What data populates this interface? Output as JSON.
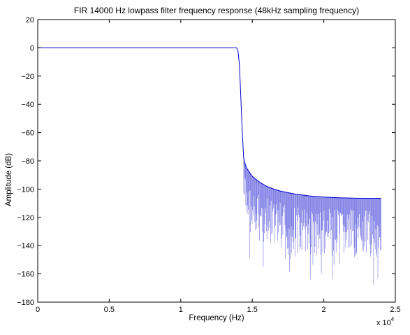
{
  "chart_data": {
    "type": "line",
    "title": "FIR 14000 Hz lowpass filter frequency response (48kHz sampling frequency)",
    "xlabel": "Frequency (Hz)",
    "ylabel": "Amplitude (dB)",
    "x_multiplier_label": "x 10",
    "x_multiplier_exponent": "4",
    "xlim": [
      0,
      25000
    ],
    "ylim": [
      -180,
      20
    ],
    "xticks": [
      0,
      5000,
      10000,
      15000,
      20000,
      25000
    ],
    "xtick_labels": [
      "0",
      "0.5",
      "1",
      "1.5",
      "2",
      "2.5"
    ],
    "yticks": [
      20,
      0,
      -20,
      -40,
      -60,
      -80,
      -100,
      -120,
      -140,
      -160,
      -180
    ],
    "ytick_labels": [
      "20",
      "0",
      "−20",
      "−40",
      "−60",
      "−80",
      "−100",
      "−120",
      "−140",
      "−160",
      "−180"
    ],
    "grid": false,
    "series": [
      {
        "color": "#0000cc",
        "x": [
          0,
          13000,
          13900,
          14000,
          14100,
          14200,
          14300,
          14400,
          14500,
          14600,
          14800,
          15000,
          15500,
          16000,
          16500,
          17000,
          18000,
          19000,
          20000,
          21000,
          22000,
          23000,
          24000
        ],
        "y": [
          0,
          0,
          0,
          -2,
          -12,
          -35,
          -60,
          -78,
          -82,
          -85,
          -88,
          -91,
          -95,
          -98,
          -100,
          -101.5,
          -103.5,
          -104.8,
          -105.6,
          -106.1,
          -106.4,
          -106.5,
          -106.5
        ]
      }
    ]
  }
}
